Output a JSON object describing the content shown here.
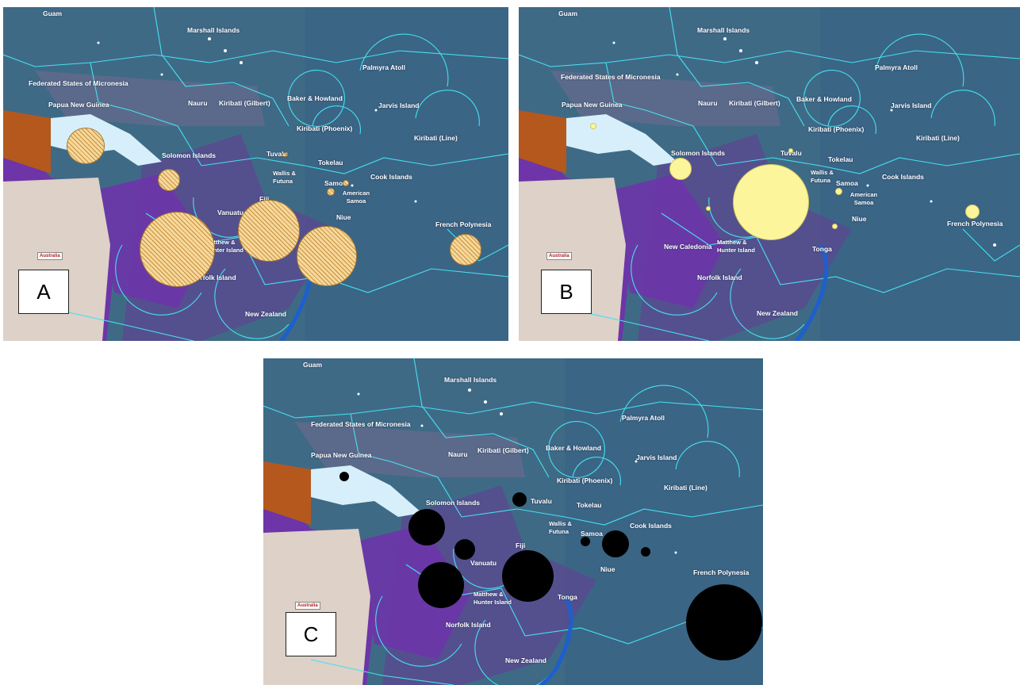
{
  "map_labels": {
    "guam": "Guam",
    "marshall": "Marshall Islands",
    "fsm": "Federated States of Micronesia",
    "palmyra": "Palmyra Atoll",
    "png": "Papua New Guinea",
    "nauru": "Nauru",
    "kiribati_gilbert": "Kiribati (Gilbert)",
    "baker": "Baker & Howland",
    "jarvis": "Jarvis Island",
    "kiribati_phoenix": "Kiribati (Phoenix)",
    "kiribati_line": "Kiribati (Line)",
    "solomon": "Solomon Islands",
    "tuvalu": "Tuvalu",
    "tokelau": "Tokelau",
    "wallis": "Wallis & Futuna",
    "samoa": "Samoa",
    "cook": "Cook Islands",
    "american_samoa": "American Samoa",
    "vanuatu": "Vanuatu",
    "fiji": "Fiji",
    "niue": "Niue",
    "french_polynesia": "French Polynesia",
    "new_caledonia": "New Caledonia",
    "matthew_hunter": "Matthew & Hunter Island",
    "tonga": "Tonga",
    "norfolk": "Norfolk Island",
    "new_zealand": "New Zealand",
    "australia": "Australia"
  },
  "panels": [
    {
      "letter": "A",
      "bubble_style": "hatched-tan"
    },
    {
      "letter": "B",
      "bubble_style": "pale-yellow"
    },
    {
      "letter": "C",
      "bubble_style": "black"
    }
  ],
  "colors": {
    "ocean": "#3f6a86",
    "eez_lines": "#45e0f0",
    "deep_purple": "#6d35a8",
    "png_island": "#d6effa",
    "australia": "#ddd1c8",
    "indonesia_land": "#b5581d"
  }
}
